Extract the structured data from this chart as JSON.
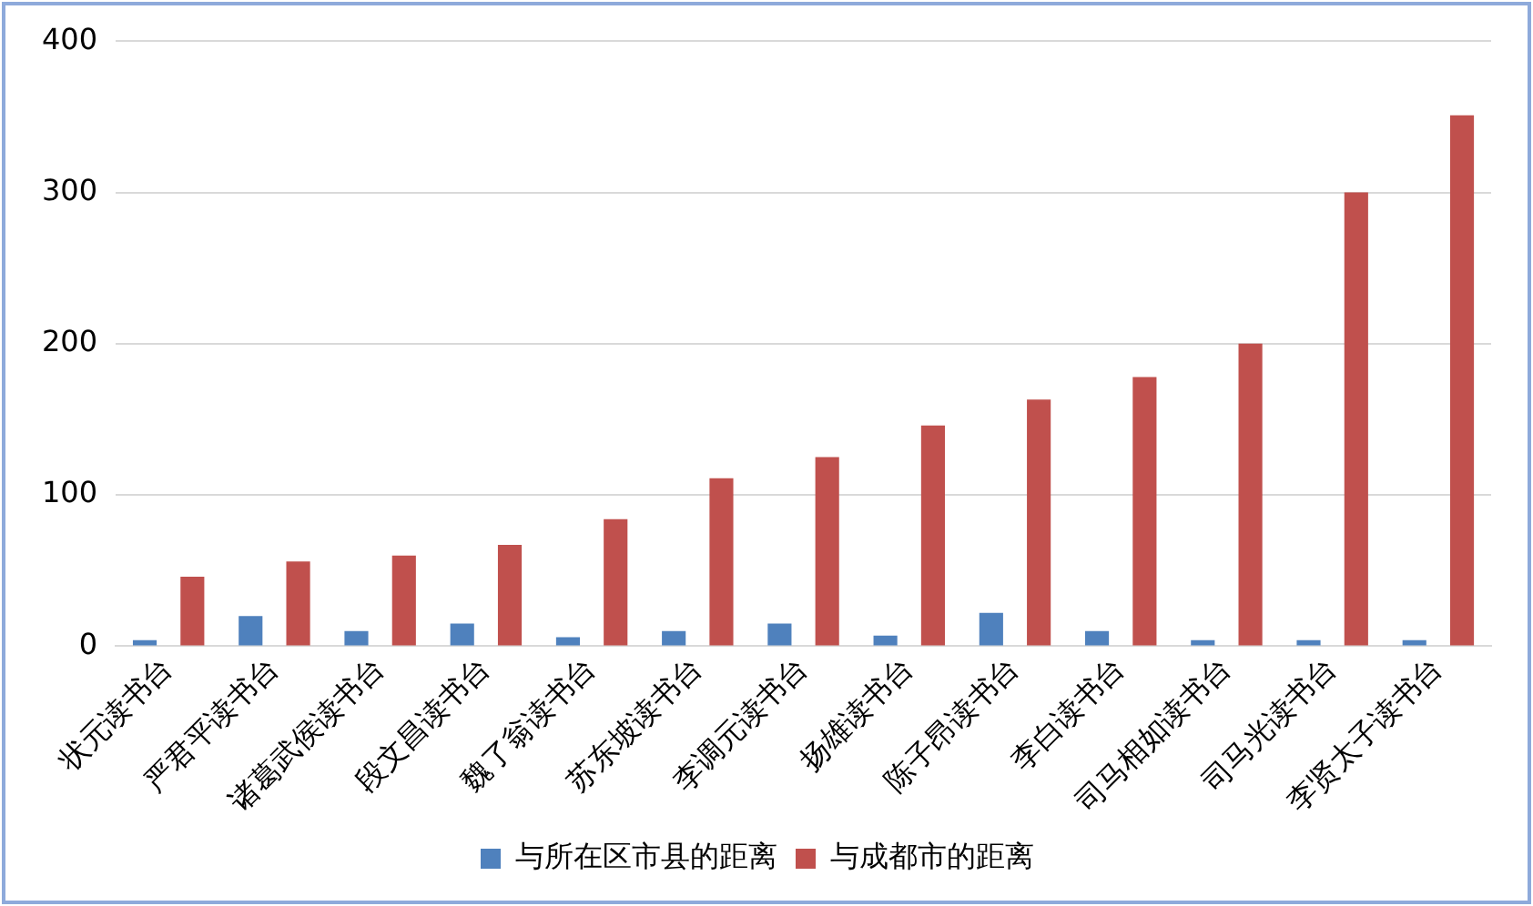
{
  "chart_data": {
    "type": "bar",
    "categories": [
      "状元读书台",
      "严君平读书台",
      "诸葛武侯读书台",
      "段文昌读书台",
      "魏了翁读书台",
      "苏东坡读书台",
      "李调元读书台",
      "扬雄读书台",
      "陈子昂读书台",
      "李白读书台",
      "司马相如读书台",
      "司马光读书台",
      "李贤太子读书台"
    ],
    "series": [
      {
        "name": "与所在区市县的距离",
        "color": "#4f81bd",
        "values": [
          4,
          20,
          10,
          15,
          6,
          10,
          15,
          7,
          22,
          10,
          4,
          4,
          4
        ]
      },
      {
        "name": "与成都市的距离",
        "color": "#c0504d",
        "values": [
          46,
          56,
          60,
          67,
          84,
          111,
          125,
          146,
          163,
          178,
          200,
          300,
          351
        ]
      }
    ],
    "ylim": [
      0,
      400
    ],
    "yticks": [
      0,
      100,
      200,
      300,
      400
    ],
    "grid": "y",
    "legend": "bottom"
  }
}
